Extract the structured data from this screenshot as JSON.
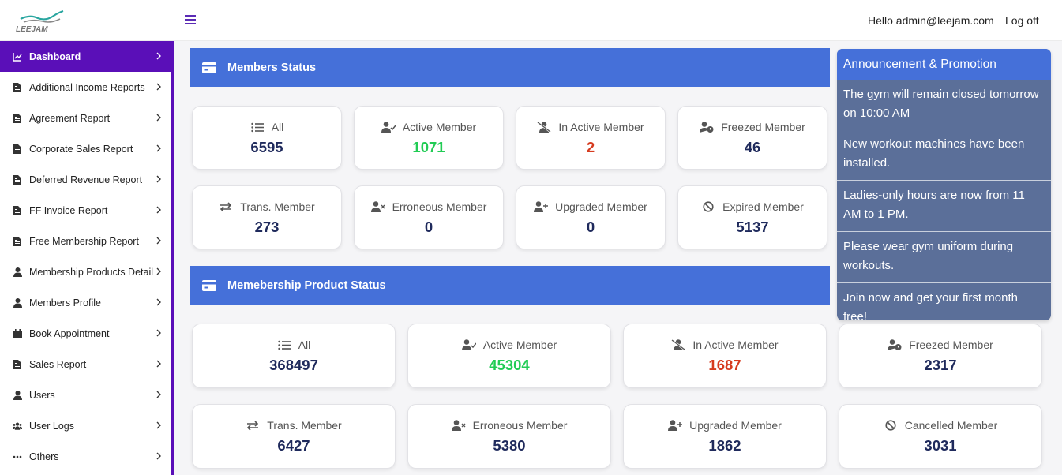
{
  "header": {
    "logo_text": "LEEJAM",
    "greeting": "Hello admin@leejam.com",
    "logoff": "Log off"
  },
  "sidebar": {
    "items": [
      {
        "label": "Dashboard",
        "icon": "chart-line-icon"
      },
      {
        "label": "Additional Income Reports",
        "icon": "file-icon"
      },
      {
        "label": "Agreement Report",
        "icon": "file-icon"
      },
      {
        "label": "Corporate Sales Report",
        "icon": "file-icon"
      },
      {
        "label": "Deferred Revenue Report",
        "icon": "file-icon"
      },
      {
        "label": "FF Invoice Report",
        "icon": "file-icon"
      },
      {
        "label": "Free Membership Report",
        "icon": "file-icon"
      },
      {
        "label": "Membership Products Detail",
        "icon": "user-icon"
      },
      {
        "label": "Members Profile",
        "icon": "user-icon"
      },
      {
        "label": "Book Appointment",
        "icon": "calendar-icon"
      },
      {
        "label": "Sales Report",
        "icon": "file-icon"
      },
      {
        "label": "Users",
        "icon": "user-icon"
      },
      {
        "label": "User Logs",
        "icon": "users-icon"
      },
      {
        "label": "Others",
        "icon": "ellipsis-icon"
      }
    ]
  },
  "members_status": {
    "title": "Members Status",
    "cards": [
      {
        "label": "All",
        "value": "6595",
        "icon": "list-icon",
        "tone": "normal"
      },
      {
        "label": "Active Member",
        "value": "1071",
        "icon": "user-check-icon",
        "tone": "green"
      },
      {
        "label": "In Active Member",
        "value": "2",
        "icon": "user-slash-icon",
        "tone": "red"
      },
      {
        "label": "Freezed Member",
        "value": "46",
        "icon": "user-clock-icon",
        "tone": "normal"
      },
      {
        "label": "Trans. Member",
        "value": "273",
        "icon": "exchange-icon",
        "tone": "normal"
      },
      {
        "label": "Erroneous Member",
        "value": "0",
        "icon": "user-times-icon",
        "tone": "normal"
      },
      {
        "label": "Upgraded Member",
        "value": "0",
        "icon": "user-plus-icon",
        "tone": "normal"
      },
      {
        "label": "Expired Member",
        "value": "5137",
        "icon": "ban-icon",
        "tone": "normal"
      }
    ]
  },
  "product_status": {
    "title": "Memebership Product Status",
    "cards": [
      {
        "label": "All",
        "value": "368497",
        "icon": "list-icon",
        "tone": "normal"
      },
      {
        "label": "Active Member",
        "value": "45304",
        "icon": "user-check-icon",
        "tone": "green"
      },
      {
        "label": "In Active Member",
        "value": "1687",
        "icon": "user-slash-icon",
        "tone": "red"
      },
      {
        "label": "Freezed Member",
        "value": "2317",
        "icon": "user-clock-icon",
        "tone": "normal"
      },
      {
        "label": "Trans. Member",
        "value": "6427",
        "icon": "exchange-icon",
        "tone": "normal"
      },
      {
        "label": "Erroneous Member",
        "value": "5380",
        "icon": "user-times-icon",
        "tone": "normal"
      },
      {
        "label": "Upgraded Member",
        "value": "1862",
        "icon": "user-plus-icon",
        "tone": "normal"
      },
      {
        "label": "Cancelled Member",
        "value": "3031",
        "icon": "ban-icon",
        "tone": "normal"
      }
    ]
  },
  "announcements": {
    "title": "Announcement & Promotion",
    "items": [
      "The gym will remain closed tomorrow on 10:00 AM",
      "New workout machines have been installed.",
      "Ladies-only hours are now from 11 AM to 1 PM.",
      "Please wear gym uniform during workouts.",
      "Join now and get your first month free!"
    ]
  },
  "colors": {
    "sidebar_active": "#5a0fb8",
    "section_header": "#4570d9",
    "value_default": "#1f2a5c",
    "value_green": "#22cc55",
    "value_red": "#d63b1f",
    "announcement_bg": "#5b6f99"
  }
}
